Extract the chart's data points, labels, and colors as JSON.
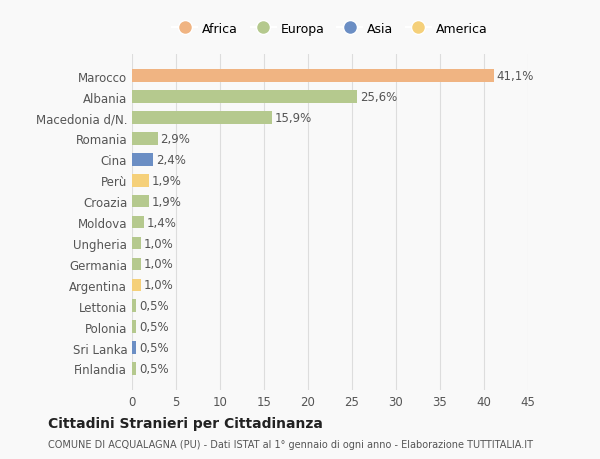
{
  "countries": [
    "Marocco",
    "Albania",
    "Macedonia d/N.",
    "Romania",
    "Cina",
    "Perù",
    "Croazia",
    "Moldova",
    "Ungheria",
    "Germania",
    "Argentina",
    "Lettonia",
    "Polonia",
    "Sri Lanka",
    "Finlandia"
  ],
  "values": [
    41.1,
    25.6,
    15.9,
    2.9,
    2.4,
    1.9,
    1.9,
    1.4,
    1.0,
    1.0,
    1.0,
    0.5,
    0.5,
    0.5,
    0.5
  ],
  "labels": [
    "41,1%",
    "25,6%",
    "15,9%",
    "2,9%",
    "2,4%",
    "1,9%",
    "1,9%",
    "1,4%",
    "1,0%",
    "1,0%",
    "1,0%",
    "0,5%",
    "0,5%",
    "0,5%",
    "0,5%"
  ],
  "colors": [
    "#f0b482",
    "#b5c98e",
    "#b5c98e",
    "#b5c98e",
    "#6b8ec4",
    "#f5d07a",
    "#b5c98e",
    "#b5c98e",
    "#b5c98e",
    "#b5c98e",
    "#f5d07a",
    "#b5c98e",
    "#b5c98e",
    "#6b8ec4",
    "#b5c98e"
  ],
  "legend_labels": [
    "Africa",
    "Europa",
    "Asia",
    "America"
  ],
  "legend_colors": [
    "#f0b482",
    "#b5c98e",
    "#6b8ec4",
    "#f5d07a"
  ],
  "xlim": [
    0,
    45
  ],
  "xticks": [
    0,
    5,
    10,
    15,
    20,
    25,
    30,
    35,
    40,
    45
  ],
  "title": "Cittadini Stranieri per Cittadinanza",
  "subtitle": "COMUNE DI ACQUALAGNA (PU) - Dati ISTAT al 1° gennaio di ogni anno - Elaborazione TUTTITALIA.IT",
  "background_color": "#f9f9f9",
  "grid_color": "#dddddd",
  "bar_height": 0.6,
  "label_fontsize": 8.5,
  "tick_fontsize": 8.5
}
